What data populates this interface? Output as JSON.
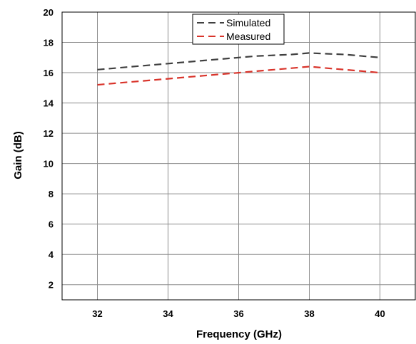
{
  "chart_data": {
    "type": "line",
    "xlabel": "Frequency (GHz)",
    "ylabel": "Gain (dB)",
    "xlim": [
      31,
      41
    ],
    "ylim": [
      1,
      20
    ],
    "xticks": [
      32,
      34,
      36,
      38,
      40
    ],
    "yticks": [
      2,
      4,
      6,
      8,
      10,
      12,
      14,
      16,
      18,
      20
    ],
    "grid": true,
    "legend_position": "top-center",
    "series": [
      {
        "name": "Simulated",
        "color": "#404040",
        "line_style": "dashed",
        "x": [
          32,
          32.5,
          33,
          33.5,
          34,
          34.5,
          35,
          35.5,
          36,
          36.5,
          37,
          37.5,
          38,
          38.5,
          39,
          39.5,
          40
        ],
        "y": [
          16.2,
          16.3,
          16.4,
          16.5,
          16.6,
          16.7,
          16.8,
          16.9,
          17.0,
          17.1,
          17.15,
          17.2,
          17.3,
          17.25,
          17.2,
          17.1,
          17.0
        ]
      },
      {
        "name": "Measured",
        "color": "#d9342b",
        "line_style": "dashed",
        "x": [
          32,
          32.5,
          33,
          33.5,
          34,
          34.5,
          35,
          35.5,
          36,
          36.5,
          37,
          37.5,
          38,
          38.5,
          39,
          39.5,
          40
        ],
        "y": [
          15.2,
          15.3,
          15.4,
          15.5,
          15.6,
          15.7,
          15.8,
          15.9,
          16.0,
          16.1,
          16.2,
          16.3,
          16.4,
          16.3,
          16.2,
          16.1,
          16.0
        ]
      }
    ]
  }
}
